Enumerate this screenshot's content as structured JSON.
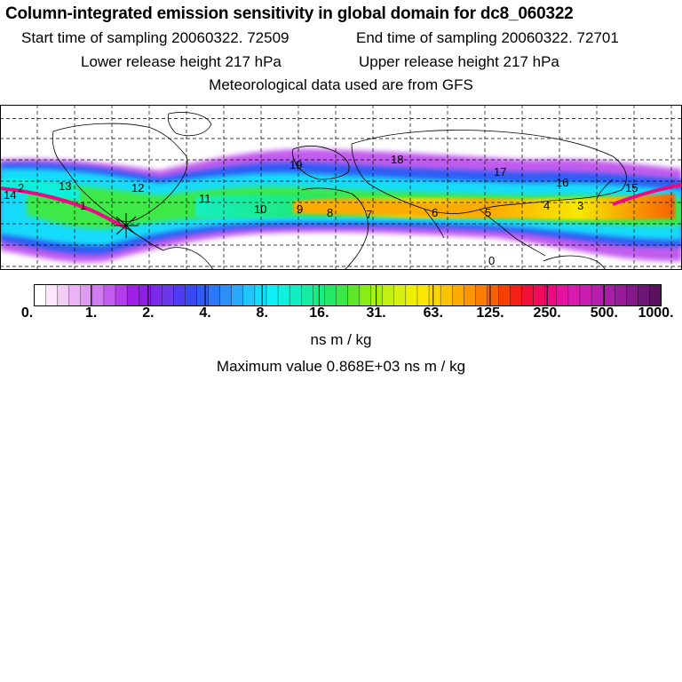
{
  "header": {
    "title": "Column-integrated emission sensitivity in global domain for dc8_060322",
    "start_label": "Start time of sampling 20060322. 72509",
    "end_label": "End time of sampling 20060322. 72701",
    "lower_label": "Lower release height  217 hPa",
    "upper_label": "Upper release height  217 hPa",
    "met_label": "Meteorological data used are from GFS"
  },
  "map": {
    "track_labels": [
      {
        "text": "14"
      },
      {
        "text": "13"
      },
      {
        "text": "12"
      },
      {
        "text": "11"
      },
      {
        "text": "10"
      },
      {
        "text": "9"
      },
      {
        "text": "8"
      },
      {
        "text": "7"
      },
      {
        "text": "6"
      },
      {
        "text": "5"
      },
      {
        "text": "4"
      },
      {
        "text": "3"
      },
      {
        "text": "15"
      },
      {
        "text": "16"
      },
      {
        "text": "17"
      },
      {
        "text": "18"
      },
      {
        "text": "19"
      },
      {
        "text": "0"
      },
      {
        "text": "1"
      },
      {
        "text": "2"
      }
    ]
  },
  "colorbar": {
    "tick_labels": [
      "0.",
      "1.",
      "2.",
      "4.",
      "8.",
      "16.",
      "31.",
      "63.",
      "125.",
      "250.",
      "500.",
      "1000."
    ],
    "units": "ns m / kg",
    "colors": [
      "#ffffff",
      "#fbe6fb",
      "#f4cdf6",
      "#eab4f4",
      "#df9af2",
      "#d07cf0",
      "#c25bee",
      "#b43cea",
      "#a020e6",
      "#8f1ee6",
      "#7a2ae8",
      "#6a38ea",
      "#4f3cf0",
      "#3a48f2",
      "#2f5cf4",
      "#2a78f6",
      "#2a90f8",
      "#2aa8fa",
      "#22c4fc",
      "#16dcfc",
      "#0ff0f8",
      "#10f0dc",
      "#12eec2",
      "#14eca6",
      "#18ea84",
      "#22e866",
      "#3ce846",
      "#5ce828",
      "#86ee14",
      "#a8f010",
      "#c2f010",
      "#d8f010",
      "#ecf000",
      "#f8e800",
      "#fcd600",
      "#fcc200",
      "#fcac00",
      "#fc9600",
      "#fa7e00",
      "#f86000",
      "#f64000",
      "#f42018",
      "#f01038",
      "#f00a5a",
      "#ec0a82",
      "#e4129e",
      "#d81aae",
      "#c81eb2",
      "#b81eae",
      "#a81ea6",
      "#961c98",
      "#841a8a",
      "#6e1676",
      "#5a125e"
    ]
  },
  "max_value": "Maximum value  0.868E+03 ns m / kg"
}
